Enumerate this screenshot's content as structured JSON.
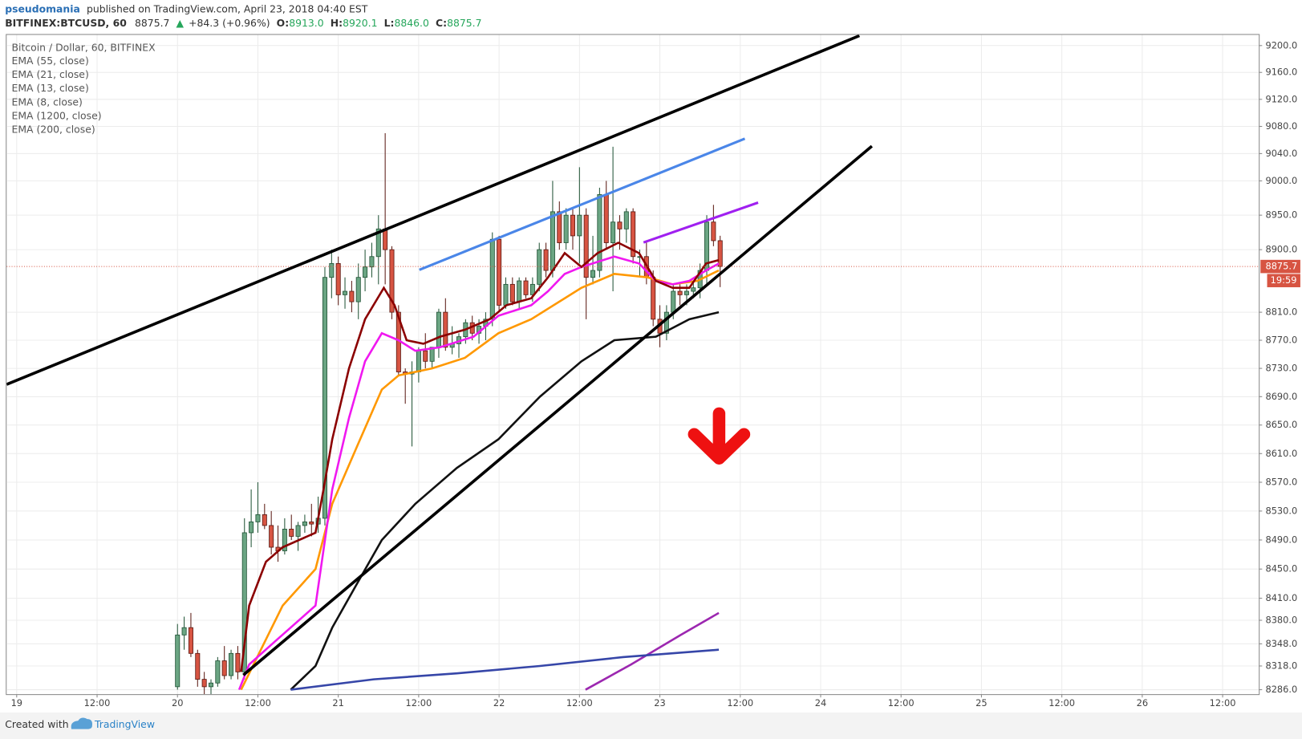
{
  "header": {
    "author": "pseudomania",
    "published": "published on TradingView.com, April 23, 2018 04:40 EST",
    "symbol": "BITFINEX:BTCUSD, 60",
    "price": "8875.7",
    "arrow": "▲",
    "change": "+84.3 (+0.96%)",
    "open_label": "O:",
    "open": "8913.0",
    "high_label": "H:",
    "high": "8920.1",
    "low_label": "L:",
    "low": "8846.0",
    "close_label": "C:",
    "close": "8875.7"
  },
  "footer": {
    "created": "Created with",
    "brand": "TradingView"
  },
  "chart_data": {
    "type": "candlestick",
    "title": "Bitcoin / Dollar, 60, BITFINEX",
    "log_scale": true,
    "grid": true,
    "up_color": "#6ba583",
    "down_color": "#d75442",
    "xlim": [
      -1.5,
      185.4
    ],
    "ylim": [
      8280,
      9216
    ],
    "xticks": [
      {
        "value": 0,
        "label": "19"
      },
      {
        "value": 12,
        "label": "12:00"
      },
      {
        "value": 24,
        "label": "20"
      },
      {
        "value": 36,
        "label": "12:00"
      },
      {
        "value": 48,
        "label": "21"
      },
      {
        "value": 60,
        "label": "12:00"
      },
      {
        "value": 72,
        "label": "22"
      },
      {
        "value": 84,
        "label": "12:00"
      },
      {
        "value": 96,
        "label": "23"
      },
      {
        "value": 108,
        "label": "12:00"
      },
      {
        "value": 120,
        "label": "24"
      },
      {
        "value": 132,
        "label": "12:00"
      },
      {
        "value": 144,
        "label": "25"
      },
      {
        "value": 156,
        "label": "12:00"
      },
      {
        "value": 168,
        "label": "26"
      },
      {
        "value": 180,
        "label": "12:00"
      }
    ],
    "yticks": [
      {
        "value": 9200,
        "label": "9200.0"
      },
      {
        "value": 9160,
        "label": "9160.0"
      },
      {
        "value": 9120,
        "label": "9120.0"
      },
      {
        "value": 9080,
        "label": "9080.0"
      },
      {
        "value": 9040,
        "label": "9040.0"
      },
      {
        "value": 9000,
        "label": "9000.0"
      },
      {
        "value": 8950,
        "label": "8950.0"
      },
      {
        "value": 8900,
        "label": "8900.0"
      },
      {
        "value": 8810,
        "label": "8810.0"
      },
      {
        "value": 8770,
        "label": "8770.0"
      },
      {
        "value": 8730,
        "label": "8730.0"
      },
      {
        "value": 8690,
        "label": "8690.0"
      },
      {
        "value": 8650,
        "label": "8650.0"
      },
      {
        "value": 8610,
        "label": "8610.0"
      },
      {
        "value": 8570,
        "label": "8570.0"
      },
      {
        "value": 8530,
        "label": "8530.0"
      },
      {
        "value": 8490,
        "label": "8490.0"
      },
      {
        "value": 8450,
        "label": "8450.0"
      },
      {
        "value": 8410,
        "label": "8410.0"
      },
      {
        "value": 8380,
        "label": "8380.0"
      },
      {
        "value": 8348,
        "label": "8348.0"
      },
      {
        "value": 8318,
        "label": "8318.0"
      },
      {
        "value": 8286,
        "label": "8286.0"
      }
    ],
    "last_price": 8875.7,
    "last_price_color": "#d75442",
    "countdown": "19:59",
    "x": [
      24,
      25,
      26,
      27,
      28,
      29,
      30,
      31,
      32,
      33,
      34,
      35,
      36,
      37,
      38,
      39,
      40,
      41,
      42,
      43,
      44,
      45,
      46,
      47,
      48,
      49,
      50,
      51,
      52,
      53,
      54,
      55,
      56,
      57,
      58,
      59,
      60,
      61,
      62,
      63,
      64,
      65,
      66,
      67,
      68,
      69,
      70,
      71,
      72,
      73,
      74,
      75,
      76,
      77,
      78,
      79,
      80,
      81,
      82,
      83,
      84,
      85,
      86,
      87,
      88,
      89,
      90,
      91,
      92,
      93,
      94,
      95,
      96,
      97,
      98,
      99,
      100,
      101,
      102,
      103,
      104,
      105
    ],
    "open": [
      8290,
      8360,
      8370,
      8335,
      8300,
      8290,
      8295,
      8325,
      8305,
      8335,
      8310,
      8500,
      8515,
      8525,
      8510,
      8480,
      8475,
      8505,
      8495,
      8510,
      8515,
      8512,
      8520,
      8860,
      8880,
      8835,
      8840,
      8825,
      8860,
      8875,
      8890,
      8930,
      8900,
      8810,
      8725,
      8722,
      8725,
      8755,
      8740,
      8760,
      8810,
      8760,
      8765,
      8775,
      8795,
      8780,
      8790,
      8800,
      8915,
      8820,
      8850,
      8825,
      8855,
      8835,
      8850,
      8900,
      8870,
      8955,
      8910,
      8950,
      8920,
      8950,
      8860,
      8870,
      8980,
      8910,
      8940,
      8930,
      8955,
      8890,
      8890,
      8860,
      8800,
      8780,
      8810,
      8840,
      8835,
      8840,
      8845,
      8870,
      8940,
      8913
    ],
    "high": [
      8375,
      8385,
      8390,
      8340,
      8310,
      8300,
      8330,
      8345,
      8340,
      8345,
      8520,
      8560,
      8570,
      8540,
      8530,
      8510,
      8520,
      8525,
      8515,
      8525,
      8540,
      8550,
      8875,
      8900,
      8890,
      8860,
      8855,
      8880,
      8900,
      8910,
      8950,
      9070,
      8905,
      8820,
      8730,
      8740,
      8760,
      8780,
      8760,
      8815,
      8830,
      8790,
      8780,
      8800,
      8805,
      8800,
      8810,
      8925,
      8920,
      8860,
      8860,
      8860,
      8860,
      8860,
      8910,
      8910,
      9000,
      8970,
      8960,
      8960,
      9020,
      8960,
      8920,
      8990,
      9000,
      9050,
      8950,
      8960,
      8960,
      8900,
      8910,
      8870,
      8820,
      8820,
      8850,
      8850,
      8850,
      8855,
      8880,
      8950,
      8965,
      8920.1
    ],
    "low": [
      8286,
      8340,
      8330,
      8290,
      8280,
      8280,
      8290,
      8300,
      8300,
      8300,
      8300,
      8480,
      8500,
      8505,
      8470,
      8460,
      8470,
      8490,
      8475,
      8500,
      8495,
      8500,
      8510,
      8830,
      8820,
      8815,
      8810,
      8800,
      8840,
      8860,
      8850,
      8850,
      8800,
      8720,
      8680,
      8620,
      8710,
      8730,
      8730,
      8745,
      8755,
      8750,
      8745,
      8765,
      8770,
      8765,
      8770,
      8790,
      8810,
      8815,
      8820,
      8815,
      8830,
      8825,
      8840,
      8860,
      8860,
      8900,
      8900,
      8900,
      8880,
      8800,
      8850,
      8860,
      8900,
      8840,
      8900,
      8910,
      8880,
      8860,
      8850,
      8790,
      8760,
      8770,
      8800,
      8820,
      8820,
      8830,
      8830,
      8850,
      8905,
      8846
    ],
    "close": [
      8360,
      8370,
      8335,
      8300,
      8290,
      8295,
      8325,
      8305,
      8335,
      8310,
      8500,
      8515,
      8525,
      8510,
      8480,
      8475,
      8505,
      8495,
      8510,
      8515,
      8512,
      8520,
      8860,
      8880,
      8835,
      8840,
      8825,
      8860,
      8875,
      8890,
      8930,
      8900,
      8810,
      8725,
      8722,
      8725,
      8755,
      8740,
      8760,
      8810,
      8760,
      8765,
      8775,
      8795,
      8780,
      8790,
      8800,
      8915,
      8820,
      8850,
      8825,
      8855,
      8835,
      8850,
      8900,
      8870,
      8955,
      8910,
      8950,
      8920,
      8950,
      8860,
      8870,
      8980,
      8910,
      8940,
      8930,
      8955,
      8890,
      8890,
      8860,
      8800,
      8780,
      8810,
      8840,
      8835,
      8840,
      8845,
      8870,
      8940,
      8913,
      8875.7
    ],
    "series": [
      {
        "name": "EMA (55, close)",
        "color": "#111111",
        "x": [
          40.9,
          44.6,
          47.1,
          50.8,
          54.5,
          59.5,
          65.7,
          71.9,
          78.1,
          84.3,
          89.2,
          95.4,
          100.4,
          104.8
        ],
        "values": [
          8286,
          8318,
          8370,
          8430,
          8490,
          8540,
          8590,
          8630,
          8690,
          8740,
          8770,
          8775,
          8800,
          8810
        ]
      },
      {
        "name": "EMA (21, close)",
        "color": "#ff9800",
        "x": [
          33.5,
          35.9,
          39.7,
          44.6,
          47.1,
          50.8,
          54.5,
          57.0,
          62.0,
          66.9,
          71.9,
          76.8,
          81.8,
          84.3,
          89.2,
          94.2,
          97.9,
          101.6,
          104.8
        ],
        "values": [
          8286,
          8330,
          8400,
          8450,
          8540,
          8620,
          8700,
          8720,
          8730,
          8745,
          8780,
          8800,
          8830,
          8845,
          8865,
          8860,
          8850,
          8855,
          8870
        ]
      },
      {
        "name": "EMA (13, close)",
        "color": "#f018f0",
        "x": [
          33.2,
          34.7,
          38.4,
          44.6,
          47.1,
          49.6,
          52.0,
          54.5,
          57.0,
          59.5,
          63.2,
          68.2,
          71.9,
          76.8,
          79.3,
          81.8,
          84.3,
          89.2,
          92.9,
          95.4,
          97.9,
          100.4,
          102.9,
          104.8
        ],
        "values": [
          8286,
          8320,
          8350,
          8400,
          8560,
          8660,
          8740,
          8780,
          8770,
          8755,
          8760,
          8775,
          8805,
          8820,
          8840,
          8865,
          8875,
          8890,
          8880,
          8855,
          8850,
          8855,
          8870,
          8880
        ]
      },
      {
        "name": "EMA (8, close)",
        "color": "#8b0000",
        "x": [
          33.5,
          34.7,
          37.2,
          39.7,
          44.6,
          45.8,
          47.1,
          49.6,
          52.0,
          54.8,
          56.4,
          58.2,
          60.7,
          63.2,
          66.9,
          70.6,
          73.1,
          76.8,
          79.3,
          81.8,
          84.3,
          86.7,
          89.8,
          92.9,
          95.4,
          97.9,
          100.4,
          102.9,
          104.8
        ],
        "values": [
          8310,
          8400,
          8460,
          8480,
          8500,
          8560,
          8630,
          8730,
          8800,
          8845,
          8820,
          8770,
          8765,
          8775,
          8785,
          8800,
          8820,
          8830,
          8860,
          8895,
          8875,
          8895,
          8910,
          8895,
          8855,
          8845,
          8845,
          8880,
          8885
        ]
      },
      {
        "name": "EMA (1200, close)",
        "color": "#9c27b0",
        "x": [
          84.9,
          91.7,
          99.1,
          104.8
        ],
        "values": [
          8286,
          8320,
          8360,
          8390
        ]
      },
      {
        "name": "EMA (200, close)",
        "color": "#3646a8",
        "x": [
          40.9,
          53.3,
          65.7,
          78.1,
          90.5,
          104.8
        ],
        "values": [
          8286,
          8300,
          8308,
          8318,
          8330,
          8340
        ]
      }
    ]
  }
}
